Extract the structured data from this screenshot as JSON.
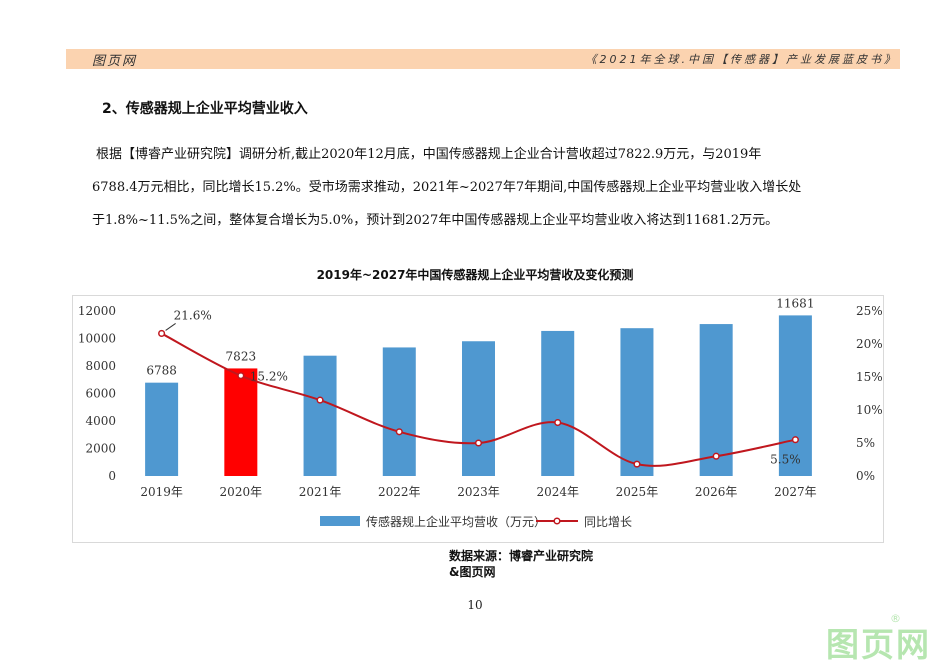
{
  "header": {
    "left": "图页网",
    "right": "《2021年全球.中国【传感器】产业发展蓝皮书》",
    "band_color": "#fbd3b0"
  },
  "section_title": "2、传感器规上企业平均营业收入",
  "paragraph": [
    "根据【博睿产业研究院】调研分析,截止2020年12月底，中国传感器规上企业合计营收超过7822.9万元，与2019年",
    "6788.4万元相比，同比增长15.2%。受市场需求推动，2021年~2027年7年期间,中国传感器规上企业平均营业收入增长处",
    "于1.8%~11.5%之间，整体复合增长为5.0%，预计到2027年中国传感器规上企业平均营业收入将达到11681.2万元。"
  ],
  "source": {
    "line1": "数据来源：博睿产业研究院",
    "line2": "&图页网"
  },
  "page_number": "10",
  "watermark": {
    "text": "图页网",
    "registered": "®"
  },
  "chart_data": {
    "type": "bar",
    "title": "2019年~2027年中国传感器规上企业平均营收及变化预测",
    "categories": [
      "2019年",
      "2020年",
      "2021年",
      "2022年",
      "2023年",
      "2024年",
      "2025年",
      "2026年",
      "2027年"
    ],
    "series": [
      {
        "name": "传感器规上企业平均营收（万元）",
        "type": "bar",
        "axis": "left",
        "color": "#4f98d0",
        "highlight_color": "#ff0000",
        "highlight_index": 1,
        "values": [
          6788,
          7823,
          8750,
          9350,
          9800,
          10550,
          10750,
          11050,
          11681
        ]
      },
      {
        "name": "同比增长",
        "type": "line",
        "axis": "right",
        "color": "#c0171e",
        "values": [
          21.6,
          15.2,
          11.5,
          6.7,
          5.0,
          8.1,
          1.8,
          3.0,
          5.5
        ]
      }
    ],
    "bar_labels": [
      {
        "index": 0,
        "text": "6788"
      },
      {
        "index": 1,
        "text": "7823"
      },
      {
        "index": 8,
        "text": "11681"
      }
    ],
    "line_labels": [
      {
        "index": 0,
        "text": "21.6%"
      },
      {
        "index": 1,
        "text": "15.2%"
      },
      {
        "index": 8,
        "text": "5.5%"
      }
    ],
    "y_left": {
      "min": 0,
      "max": 12000,
      "ticks": [
        "0",
        "2000",
        "4000",
        "6000",
        "8000",
        "10000",
        "12000"
      ]
    },
    "y_right": {
      "min": 0,
      "max": 25,
      "ticks": [
        "0%",
        "5%",
        "10%",
        "15%",
        "20%",
        "25%"
      ]
    },
    "grid": false,
    "legend_position": "bottom"
  }
}
